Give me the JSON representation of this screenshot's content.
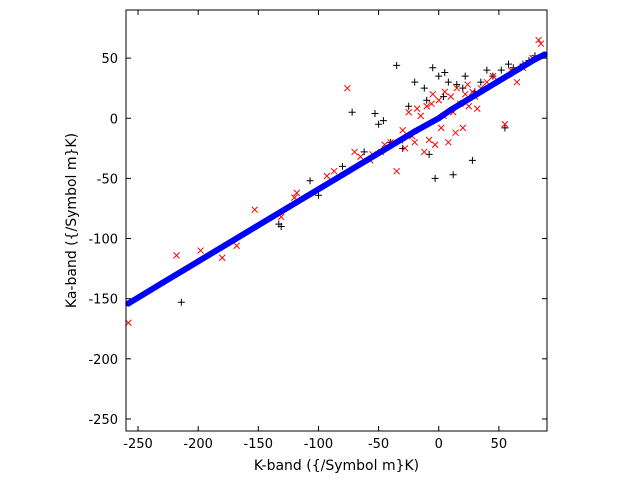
{
  "chart_data": {
    "type": "scatter",
    "title": "",
    "xlabel": "K-band ({/Symbol m}K)",
    "ylabel": "Ka-band ({/Symbol m}K)",
    "xlim": [
      -260,
      90
    ],
    "ylim": [
      -260,
      90
    ],
    "xticks": [
      -250,
      -200,
      -150,
      -100,
      -50,
      0,
      50
    ],
    "yticks": [
      -250,
      -200,
      -150,
      -100,
      -50,
      0,
      50
    ],
    "grid": false,
    "legend": "none",
    "series": [
      {
        "marker": "plus",
        "color": "#000000",
        "points": [
          [
            -214,
            -153
          ],
          [
            -133,
            -88
          ],
          [
            -131,
            -90
          ],
          [
            -107,
            -52
          ],
          [
            -100,
            -64
          ],
          [
            -80,
            -40
          ],
          [
            -72,
            5
          ],
          [
            -62,
            -28
          ],
          [
            -53,
            4
          ],
          [
            -50,
            -5
          ],
          [
            -46,
            -2
          ],
          [
            -35,
            44
          ],
          [
            -30,
            -18
          ],
          [
            -25,
            10
          ],
          [
            -20,
            30
          ],
          [
            -12,
            25
          ],
          [
            -10,
            15
          ],
          [
            -5,
            42
          ],
          [
            -3,
            -50
          ],
          [
            0,
            35
          ],
          [
            5,
            38
          ],
          [
            8,
            30
          ],
          [
            12,
            -47
          ],
          [
            15,
            28
          ],
          [
            20,
            25
          ],
          [
            22,
            35
          ],
          [
            28,
            -35
          ],
          [
            30,
            22
          ],
          [
            35,
            30
          ],
          [
            40,
            40
          ],
          [
            45,
            35
          ],
          [
            48,
            30
          ],
          [
            52,
            40
          ],
          [
            55,
            -8
          ],
          [
            58,
            45
          ],
          [
            62,
            42
          ],
          [
            70,
            45
          ],
          [
            75,
            48
          ],
          [
            80,
            52
          ],
          [
            -40,
            -20
          ],
          [
            -30,
            -25
          ],
          [
            -18,
            -10
          ],
          [
            -8,
            -30
          ],
          [
            4,
            18
          ],
          [
            18,
            12
          ]
        ]
      },
      {
        "marker": "x",
        "color": "#ff0000",
        "points": [
          [
            -258,
            -170
          ],
          [
            -218,
            -114
          ],
          [
            -198,
            -110
          ],
          [
            -180,
            -116
          ],
          [
            -168,
            -106
          ],
          [
            -153,
            -76
          ],
          [
            -131,
            -82
          ],
          [
            -120,
            -66
          ],
          [
            -118,
            -62
          ],
          [
            -93,
            -48
          ],
          [
            -87,
            -44
          ],
          [
            -76,
            25
          ],
          [
            -70,
            -28
          ],
          [
            -65,
            -32
          ],
          [
            -57,
            -35
          ],
          [
            -55,
            -30
          ],
          [
            -48,
            -28
          ],
          [
            -45,
            -22
          ],
          [
            -40,
            -20
          ],
          [
            -35,
            -44
          ],
          [
            -30,
            -10
          ],
          [
            -28,
            -25
          ],
          [
            -25,
            5
          ],
          [
            -22,
            -15
          ],
          [
            -20,
            -20
          ],
          [
            -15,
            2
          ],
          [
            -12,
            -28
          ],
          [
            -10,
            10
          ],
          [
            -8,
            -18
          ],
          [
            -5,
            20
          ],
          [
            -3,
            -22
          ],
          [
            0,
            15
          ],
          [
            2,
            -8
          ],
          [
            5,
            22
          ],
          [
            8,
            -20
          ],
          [
            10,
            18
          ],
          [
            12,
            5
          ],
          [
            15,
            25
          ],
          [
            18,
            12
          ],
          [
            20,
            -8
          ],
          [
            22,
            20
          ],
          [
            25,
            10
          ],
          [
            28,
            22
          ],
          [
            30,
            18
          ],
          [
            35,
            25
          ],
          [
            40,
            30
          ],
          [
            45,
            35
          ],
          [
            55,
            -5
          ],
          [
            60,
            40
          ],
          [
            65,
            30
          ],
          [
            70,
            42
          ],
          [
            78,
            50
          ],
          [
            83,
            65
          ],
          [
            85,
            62
          ],
          [
            -18,
            8
          ],
          [
            -6,
            12
          ],
          [
            4,
            2
          ],
          [
            14,
            -12
          ],
          [
            24,
            28
          ],
          [
            32,
            8
          ]
        ]
      },
      {
        "marker": "dot",
        "color": "#0000ff",
        "points": [
          [
            -258,
            -154
          ],
          [
            -230,
            -137
          ],
          [
            -200,
            -119
          ],
          [
            -170,
            -101
          ],
          [
            -140,
            -83
          ],
          [
            -110,
            -65
          ],
          [
            -80,
            -47
          ],
          [
            -50,
            -29
          ],
          [
            -20,
            -11
          ],
          [
            0,
            0
          ],
          [
            10,
            7
          ],
          [
            20,
            13
          ],
          [
            30,
            19
          ],
          [
            40,
            25
          ],
          [
            50,
            31
          ],
          [
            60,
            37
          ],
          [
            70,
            43
          ],
          [
            80,
            49
          ],
          [
            88,
            53
          ]
        ]
      }
    ]
  }
}
